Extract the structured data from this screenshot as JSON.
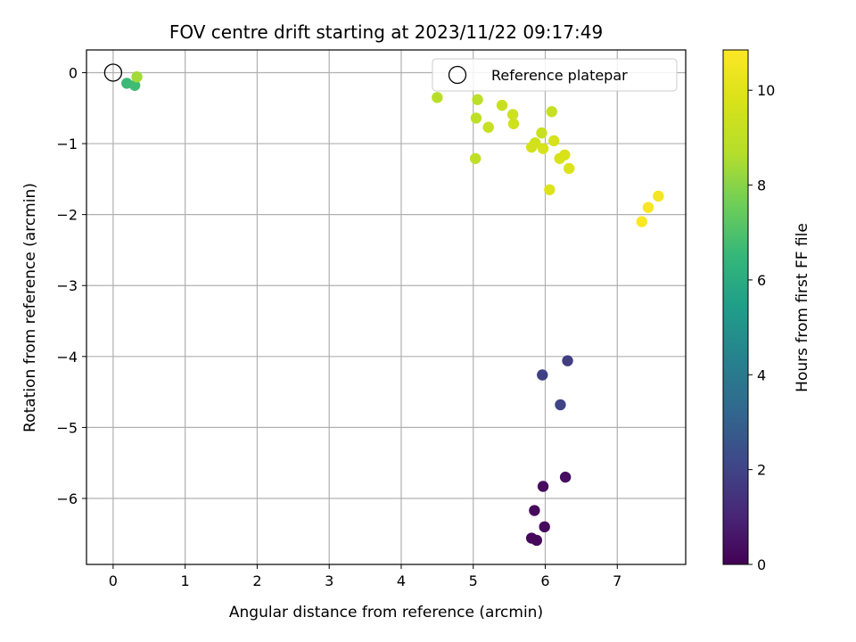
{
  "chart_data": {
    "type": "scatter",
    "title": "FOV centre drift starting at 2023/11/22 09:17:49",
    "xlabel": "Angular distance from reference (arcmin)",
    "ylabel": "Rotation from reference (arcmin)",
    "xlim": [
      -0.37,
      7.95
    ],
    "ylim": [
      -6.93,
      0.32
    ],
    "xticks": [
      0,
      1,
      2,
      3,
      4,
      5,
      6,
      7
    ],
    "yticks": [
      0,
      -1,
      -2,
      -3,
      -4,
      -5,
      -6
    ],
    "grid": true,
    "legend": {
      "position": "top-right",
      "entries": [
        "Reference platepar"
      ]
    },
    "reference_point": {
      "x": 0,
      "y": 0
    },
    "colorbar": {
      "label": "Hours from first FF file",
      "range": [
        0,
        10.85
      ],
      "ticks": [
        0,
        2,
        4,
        6,
        8,
        10
      ],
      "colormap": "viridis"
    },
    "points": [
      {
        "x": 5.97,
        "y": -5.83,
        "hours": 0.3
      },
      {
        "x": 6.28,
        "y": -5.7,
        "hours": 0.35
      },
      {
        "x": 5.85,
        "y": -6.17,
        "hours": 0.25
      },
      {
        "x": 5.99,
        "y": -6.4,
        "hours": 0.3
      },
      {
        "x": 5.81,
        "y": -6.56,
        "hours": 0.2
      },
      {
        "x": 5.88,
        "y": -6.59,
        "hours": 0.2
      },
      {
        "x": 6.31,
        "y": -4.06,
        "hours": 1.8
      },
      {
        "x": 5.96,
        "y": -4.26,
        "hours": 1.9
      },
      {
        "x": 6.21,
        "y": -4.68,
        "hours": 2.0
      },
      {
        "x": 0.19,
        "y": -0.15,
        "hours": 6.6
      },
      {
        "x": 0.3,
        "y": -0.18,
        "hours": 6.7
      },
      {
        "x": 0.33,
        "y": -0.06,
        "hours": 8.4
      },
      {
        "x": 4.5,
        "y": -0.35,
        "hours": 8.8
      },
      {
        "x": 5.06,
        "y": -0.38,
        "hours": 8.9
      },
      {
        "x": 5.04,
        "y": -0.64,
        "hours": 9.0
      },
      {
        "x": 5.21,
        "y": -0.77,
        "hours": 9.2
      },
      {
        "x": 5.4,
        "y": -0.46,
        "hours": 9.3
      },
      {
        "x": 5.55,
        "y": -0.59,
        "hours": 9.4
      },
      {
        "x": 5.56,
        "y": -0.72,
        "hours": 9.5
      },
      {
        "x": 5.03,
        "y": -1.21,
        "hours": 9.0
      },
      {
        "x": 6.09,
        "y": -0.55,
        "hours": 9.2
      },
      {
        "x": 5.95,
        "y": -0.85,
        "hours": 9.3
      },
      {
        "x": 5.86,
        "y": -0.99,
        "hours": 9.5
      },
      {
        "x": 5.81,
        "y": -1.05,
        "hours": 9.6
      },
      {
        "x": 5.97,
        "y": -1.07,
        "hours": 9.7
      },
      {
        "x": 6.12,
        "y": -0.96,
        "hours": 9.7
      },
      {
        "x": 6.27,
        "y": -1.16,
        "hours": 9.8
      },
      {
        "x": 6.2,
        "y": -1.21,
        "hours": 9.8
      },
      {
        "x": 6.33,
        "y": -1.35,
        "hours": 9.9
      },
      {
        "x": 6.06,
        "y": -1.65,
        "hours": 9.9
      },
      {
        "x": 7.57,
        "y": -1.74,
        "hours": 10.6
      },
      {
        "x": 7.43,
        "y": -1.9,
        "hours": 10.7
      },
      {
        "x": 7.34,
        "y": -2.1,
        "hours": 10.8
      }
    ]
  }
}
